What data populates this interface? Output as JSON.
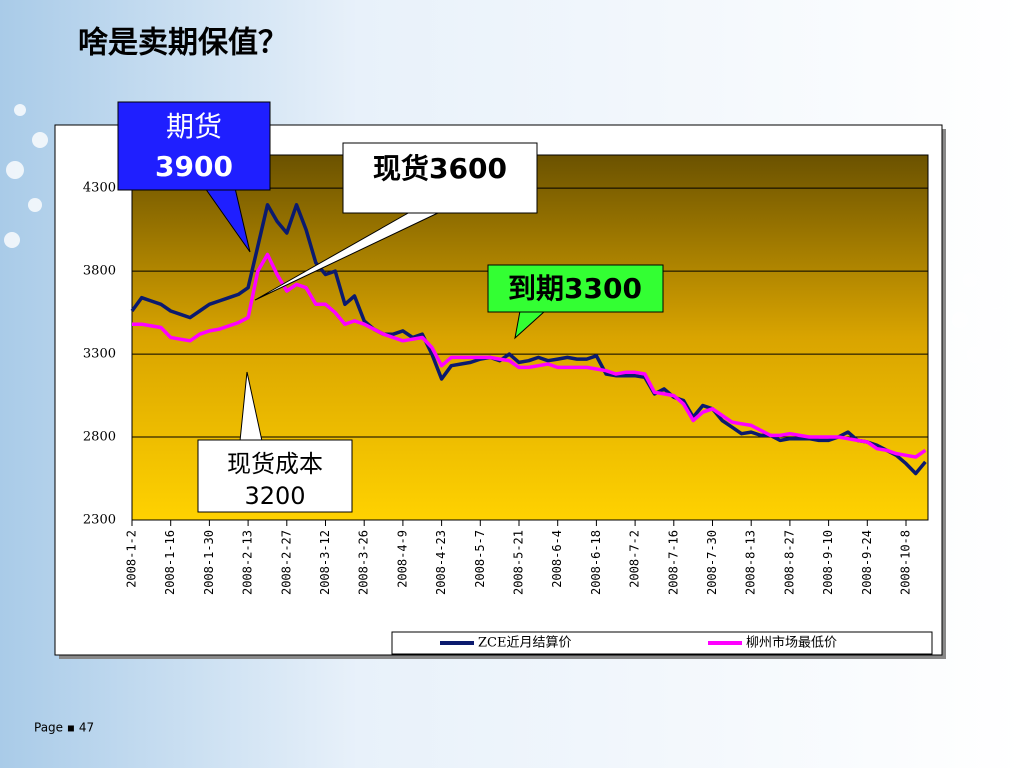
{
  "title": "啥是卖期保值？",
  "footer": "Page ▪ 47",
  "annotations": [
    {
      "lines": [
        "期货",
        "3900"
      ]
    },
    {
      "lines": [
        "现货3600"
      ]
    },
    {
      "lines": [
        "到期3300"
      ]
    },
    {
      "lines": [
        "现货成本",
        "3200"
      ]
    }
  ],
  "chart_data": {
    "type": "line",
    "categories": [
      "2008-1-2",
      null,
      null,
      null,
      "2008-1-16",
      null,
      null,
      null,
      "2008-1-30",
      null,
      null,
      null,
      "2008-2-13",
      null,
      null,
      null,
      "2008-2-27",
      null,
      null,
      null,
      "2008-3-12",
      null,
      null,
      null,
      "2008-3-26",
      null,
      null,
      null,
      "2008-4-9",
      null,
      null,
      null,
      "2008-4-23",
      null,
      null,
      null,
      "2008-5-7",
      null,
      null,
      null,
      "2008-5-21",
      null,
      null,
      null,
      "2008-6-4",
      null,
      null,
      null,
      "2008-6-18",
      null,
      null,
      null,
      "2008-7-2",
      null,
      null,
      null,
      "2008-7-16",
      null,
      null,
      null,
      "2008-7-30",
      null,
      null,
      null,
      "2008-8-13",
      null,
      null,
      null,
      "2008-8-27",
      null,
      null,
      null,
      "2008-9-10",
      null,
      null,
      null,
      "2008-9-24",
      null,
      null,
      null,
      "2008-10-8",
      null,
      null
    ],
    "series": [
      {
        "name": "ZCE近月结算价",
        "color": "#0b1a6e",
        "values": [
          3560,
          3640,
          3620,
          3600,
          3560,
          3540,
          3520,
          3560,
          3600,
          3620,
          3640,
          3660,
          3700,
          3950,
          4200,
          4100,
          4030,
          4200,
          4050,
          3850,
          3780,
          3800,
          3600,
          3650,
          3500,
          3450,
          3420,
          3420,
          3440,
          3400,
          3420,
          3300,
          3150,
          3230,
          3240,
          3250,
          3270,
          3280,
          3260,
          3300,
          3250,
          3260,
          3280,
          3260,
          3270,
          3280,
          3270,
          3270,
          3290,
          3180,
          3170,
          3170,
          3170,
          3160,
          3060,
          3090,
          3040,
          3020,
          2920,
          2990,
          2970,
          2900,
          2860,
          2820,
          2830,
          2810,
          2810,
          2780,
          2790,
          2790,
          2790,
          2780,
          2780,
          2800,
          2830,
          2780,
          2770,
          2750,
          2720,
          2690,
          2640,
          2580,
          2650
        ]
      },
      {
        "name": "柳州市场最低价",
        "color": "#ff00ff",
        "values": [
          3480,
          3480,
          3470,
          3460,
          3400,
          3390,
          3380,
          3420,
          3440,
          3450,
          3470,
          3490,
          3520,
          3800,
          3900,
          3780,
          3680,
          3720,
          3700,
          3600,
          3600,
          3550,
          3480,
          3500,
          3480,
          3450,
          3420,
          3400,
          3380,
          3390,
          3400,
          3340,
          3230,
          3280,
          3280,
          3280,
          3280,
          3280,
          3270,
          3260,
          3220,
          3220,
          3230,
          3240,
          3220,
          3220,
          3220,
          3220,
          3210,
          3200,
          3180,
          3190,
          3190,
          3180,
          3070,
          3060,
          3050,
          3000,
          2900,
          2950,
          2970,
          2930,
          2890,
          2880,
          2870,
          2840,
          2810,
          2810,
          2820,
          2810,
          2800,
          2800,
          2800,
          2800,
          2790,
          2780,
          2770,
          2730,
          2720,
          2700,
          2690,
          2680,
          2720
        ]
      }
    ],
    "ylim": [
      2300,
      4500
    ],
    "yticks": [
      2300,
      2800,
      3300,
      3800,
      4300
    ],
    "grid": true,
    "legend": "bottom-right"
  }
}
